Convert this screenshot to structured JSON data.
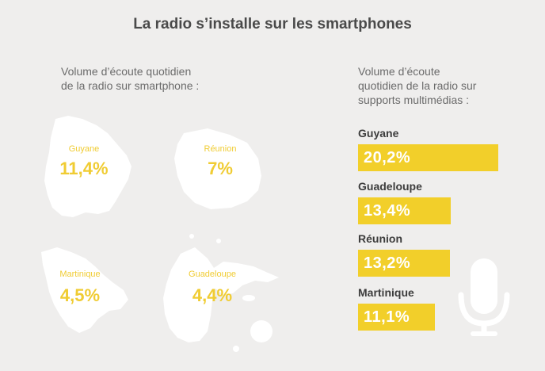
{
  "title": "La radio s’installe sur les smartphones",
  "left_panel": {
    "subtitle_line1": "Volume d’écoute quotidien",
    "subtitle_line2": "de la radio sur smartphone :"
  },
  "right_panel": {
    "subtitle_line1": "Volume d’écoute",
    "subtitle_line2": "quotidien de la radio sur",
    "subtitle_line3": "supports multimédias :"
  },
  "colors": {
    "accent": "#f2cf2a",
    "label": "#f0cc33",
    "map": "#ffffff",
    "background": "#efeeed"
  },
  "chart_data": [
    {
      "type": "table",
      "title": "Volume d’écoute quotidien de la radio sur smartphone",
      "categories": [
        "Guyane",
        "Réunion",
        "Martinique",
        "Guadeloupe"
      ],
      "values": [
        11.4,
        7,
        4.5,
        4.4
      ],
      "value_labels": [
        "11,4%",
        "7%",
        "4,5%",
        "4,4%"
      ],
      "unit": "%"
    },
    {
      "type": "bar",
      "orientation": "horizontal",
      "title": "Volume d’écoute quotidien de la radio sur supports multimédias",
      "categories": [
        "Guyane",
        "Guadeloupe",
        "Réunion",
        "Martinique"
      ],
      "values": [
        20.2,
        13.4,
        13.2,
        11.1
      ],
      "value_labels": [
        "20,2%",
        "13,4%",
        "13,2%",
        "11,1%"
      ],
      "unit": "%",
      "xlim": [
        0,
        20.2
      ]
    }
  ]
}
